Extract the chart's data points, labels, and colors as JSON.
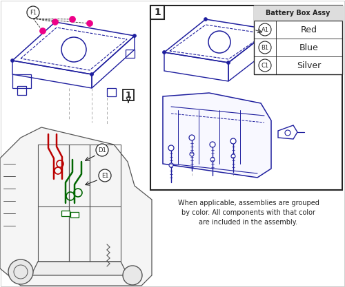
{
  "bg_color": "#ffffff",
  "legend_title": "Battery Box Assy",
  "legend_items": [
    {
      "label": "A1",
      "color_name": "Red"
    },
    {
      "label": "B1",
      "color_name": "Blue"
    },
    {
      "label": "C1",
      "color_name": "Silver"
    }
  ],
  "note_text": "When applicable, assemblies are grouped\nby color. All components with that color\nare included in the assembly.",
  "blue_color": "#1e1e9e",
  "red_color": "#bb0000",
  "green_color": "#006600",
  "pink_color": "#ee0088",
  "gray_color": "#aaaaaa",
  "dark_color": "#222222",
  "line_color": "#555555"
}
